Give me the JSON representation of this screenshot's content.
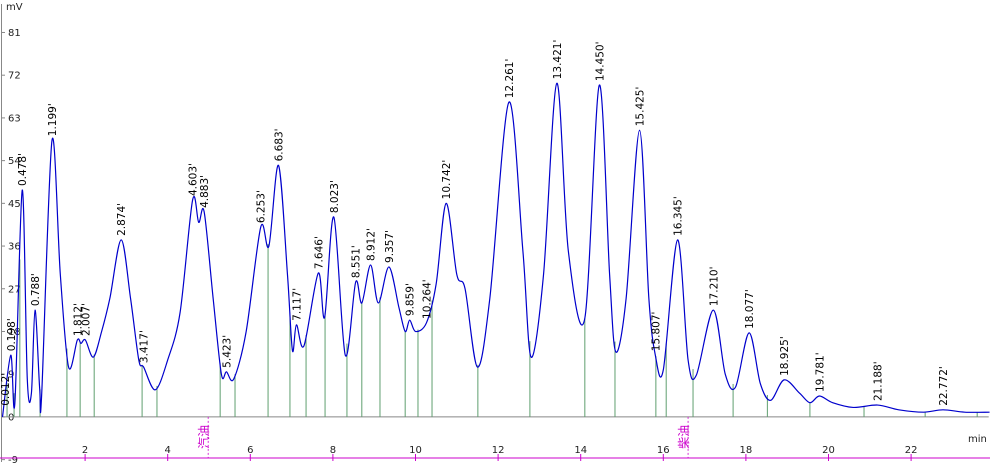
{
  "chart_data": {
    "type": "line",
    "y_label": "mV",
    "x_label": "min",
    "xlim": [
      0,
      24
    ],
    "ylim": [
      -9.5,
      87
    ],
    "xticks": [
      2,
      4,
      6,
      8,
      10,
      12,
      14,
      16,
      18,
      20,
      22
    ],
    "yticks": [
      -9,
      0,
      9,
      18,
      27,
      36,
      45,
      54,
      63,
      72,
      81
    ],
    "series": [
      {
        "color": "#0000cc",
        "x": [
          0,
          0.2,
          0.3,
          0.478,
          0.6,
          0.7,
          0.788,
          0.9,
          0.95,
          1.199,
          1.4,
          1.6,
          1.812,
          1.9,
          2.007,
          2.2,
          2.4,
          2.6,
          2.874,
          3.1,
          3.3,
          3.417,
          3.7,
          4.0,
          4.3,
          4.603,
          4.75,
          4.883,
          5.1,
          5.3,
          5.423,
          5.6,
          5.9,
          6.253,
          6.45,
          6.683,
          6.9,
          7.02,
          7.117,
          7.3,
          7.646,
          7.8,
          8.023,
          8.3,
          8.551,
          8.7,
          8.912,
          9.1,
          9.357,
          9.6,
          9.75,
          9.859,
          10.0,
          10.264,
          10.5,
          10.742,
          11.0,
          11.2,
          11.5,
          11.8,
          12.261,
          12.6,
          12.8,
          13.1,
          13.421,
          13.7,
          14.1,
          14.45,
          14.7,
          14.85,
          15.1,
          15.425,
          15.65,
          15.807,
          16.0,
          16.345,
          16.6,
          16.8,
          17.21,
          17.5,
          17.75,
          18.077,
          18.35,
          18.6,
          18.925,
          19.3,
          19.55,
          19.781,
          20.1,
          20.6,
          21.188,
          21.7,
          22.3,
          22.772,
          23.3,
          23.9
        ],
        "values": [
          0,
          13,
          3,
          47.8,
          8,
          5,
          22.5,
          6,
          5,
          58.3,
          30,
          10.5,
          16.2,
          15.5,
          16.2,
          12.6,
          18,
          25,
          37.3,
          25,
          12,
          10.5,
          5.7,
          12,
          22,
          45.7,
          41,
          43.2,
          25,
          9,
          9.5,
          8,
          18,
          40,
          36,
          53,
          30,
          14,
          19.4,
          15,
          30.3,
          21,
          42.1,
          13,
          28.4,
          24,
          32,
          24,
          31.6,
          23,
          18,
          20.4,
          18,
          19.8,
          28,
          45,
          30,
          27,
          10.5,
          25,
          66.3,
          35,
          12.6,
          30,
          70.3,
          35,
          20.8,
          69.9,
          30,
          13.7,
          25,
          60.4,
          25,
          13,
          9.9,
          37.3,
          12,
          8.8,
          22.5,
          9,
          6.3,
          17.7,
          7,
          3.5,
          7.8,
          5,
          3,
          4.4,
          3,
          2,
          2.5,
          1.5,
          1,
          1.5,
          1,
          1
        ]
      }
    ],
    "peak_labels": [
      {
        "text": "0.012'",
        "x": 0.06,
        "y": 1.5
      },
      {
        "text": "0.198'",
        "x": 0.2,
        "y": 13
      },
      {
        "text": "0.478'",
        "x": 0.478,
        "y": 47.8
      },
      {
        "text": "0.788'",
        "x": 0.788,
        "y": 22.5
      },
      {
        "text": "1.199'",
        "x": 1.199,
        "y": 58.3
      },
      {
        "text": "1.812'",
        "x": 1.812,
        "y": 16.2
      },
      {
        "text": "2.007'",
        "x": 2.007,
        "y": 16.2
      },
      {
        "text": "2.874'",
        "x": 2.874,
        "y": 37.3
      },
      {
        "text": "3.417'",
        "x": 3.417,
        "y": 10.5
      },
      {
        "text": "4.603'",
        "x": 4.603,
        "y": 45.7
      },
      {
        "text": "4.883'",
        "x": 4.883,
        "y": 43.2
      },
      {
        "text": "5.423'",
        "x": 5.423,
        "y": 9.5
      },
      {
        "text": "6.253'",
        "x": 6.253,
        "y": 40
      },
      {
        "text": "6.683'",
        "x": 6.683,
        "y": 53
      },
      {
        "text": "7.117'",
        "x": 7.117,
        "y": 19.4
      },
      {
        "text": "7.646'",
        "x": 7.646,
        "y": 30.3
      },
      {
        "text": "8.023'",
        "x": 8.023,
        "y": 42.1
      },
      {
        "text": "8.551'",
        "x": 8.551,
        "y": 28.4
      },
      {
        "text": "8.912'",
        "x": 8.912,
        "y": 32
      },
      {
        "text": "9.357'",
        "x": 9.357,
        "y": 31.6
      },
      {
        "text": "9.859'",
        "x": 9.859,
        "y": 20.4
      },
      {
        "text": "10.264'",
        "x": 10.264,
        "y": 19.8
      },
      {
        "text": "10.742'",
        "x": 10.742,
        "y": 45
      },
      {
        "text": "12.261'",
        "x": 12.261,
        "y": 66.3
      },
      {
        "text": "13.421'",
        "x": 13.421,
        "y": 70.3
      },
      {
        "text": "14.450'",
        "x": 14.45,
        "y": 69.9
      },
      {
        "text": "15.425'",
        "x": 15.425,
        "y": 60.4
      },
      {
        "text": "15.807'",
        "x": 15.807,
        "y": 13
      },
      {
        "text": "16.345'",
        "x": 16.345,
        "y": 37.3
      },
      {
        "text": "17.210'",
        "x": 17.21,
        "y": 22.5
      },
      {
        "text": "18.077'",
        "x": 18.077,
        "y": 17.7
      },
      {
        "text": "18.925'",
        "x": 18.925,
        "y": 7.8
      },
      {
        "text": "19.781'",
        "x": 19.781,
        "y": 4.4
      },
      {
        "text": "21.188'",
        "x": 21.188,
        "y": 2.5
      },
      {
        "text": "22.772'",
        "x": 22.772,
        "y": 1.5
      }
    ],
    "drop_lines": [
      0.11,
      0.28,
      0.42,
      0.91,
      1.56,
      1.88,
      2.22,
      3.38,
      3.74,
      5.27,
      5.63,
      6.43,
      6.96,
      7.35,
      7.81,
      8.34,
      8.7,
      9.14,
      9.75,
      10.06,
      10.4,
      11.51,
      12.77,
      14.1,
      14.83,
      15.82,
      16.07,
      16.72,
      17.69,
      18.52,
      19.55,
      20.86,
      22.34,
      23.6
    ],
    "drop_line_color": "#5f9f6f",
    "markers": [
      {
        "label": "汽油",
        "x": 4.98
      },
      {
        "label": "柴油",
        "x": 16.6
      }
    ],
    "marker_color": "#cc00cc"
  }
}
